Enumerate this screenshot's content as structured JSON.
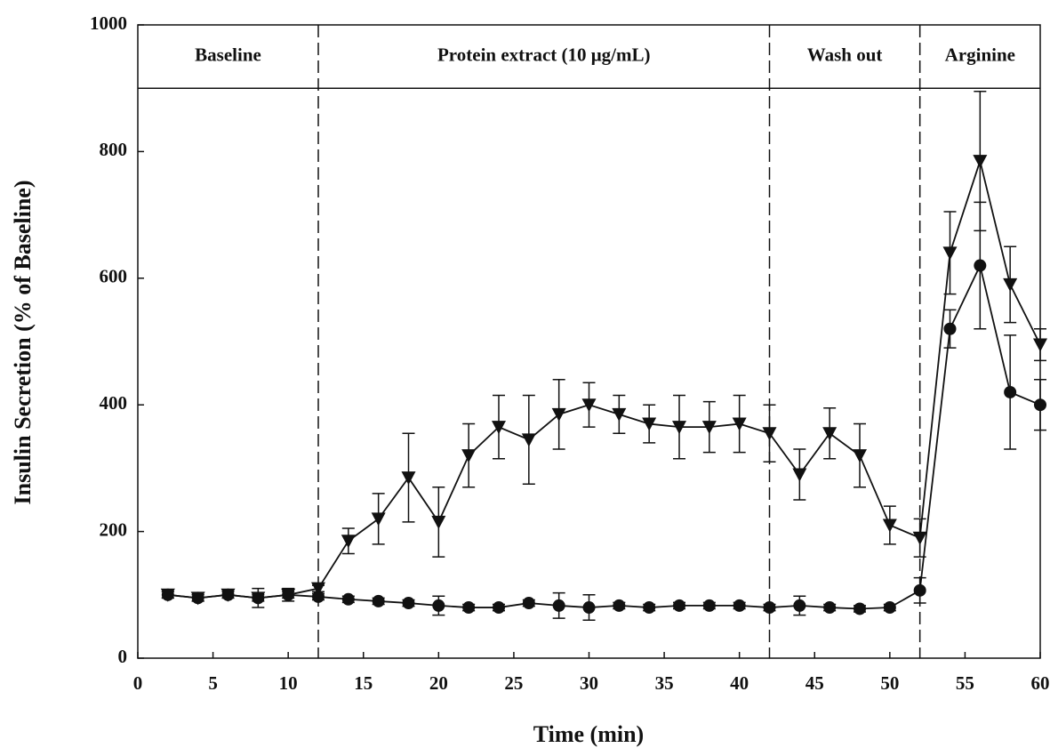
{
  "chart_data": {
    "type": "line",
    "x_label": "Time (min)",
    "y_label": "Insulin Secretion (% of Baseline)",
    "x": [
      2,
      4,
      6,
      8,
      10,
      12,
      14,
      16,
      18,
      20,
      22,
      24,
      26,
      28,
      30,
      32,
      34,
      36,
      38,
      40,
      42,
      44,
      46,
      48,
      50,
      52,
      54,
      56,
      58,
      60
    ],
    "series": [
      {
        "marker": "triangle-down",
        "color": "#111111",
        "values": [
          100,
          95,
          100,
          95,
          100,
          110,
          185,
          220,
          285,
          215,
          320,
          365,
          345,
          385,
          400,
          385,
          370,
          365,
          365,
          370,
          355,
          290,
          355,
          320,
          210,
          190,
          640,
          785,
          590,
          495
        ],
        "errors": [
          5,
          5,
          5,
          5,
          5,
          5,
          20,
          40,
          70,
          55,
          50,
          50,
          70,
          55,
          35,
          30,
          30,
          50,
          40,
          45,
          45,
          40,
          40,
          50,
          30,
          30,
          65,
          110,
          60,
          25
        ]
      },
      {
        "marker": "circle",
        "color": "#111111",
        "values": [
          100,
          95,
          100,
          95,
          100,
          97,
          93,
          90,
          87,
          83,
          80,
          80,
          87,
          83,
          80,
          83,
          80,
          83,
          83,
          83,
          80,
          83,
          80,
          78,
          80,
          107,
          520,
          620,
          420,
          400
        ],
        "errors": [
          5,
          5,
          5,
          15,
          10,
          5,
          5,
          5,
          5,
          15,
          5,
          5,
          5,
          20,
          20,
          5,
          5,
          5,
          5,
          5,
          5,
          15,
          5,
          5,
          5,
          20,
          30,
          100,
          90,
          40
        ]
      }
    ],
    "phases": [
      {
        "label": "Baseline",
        "start": 0,
        "end": 12
      },
      {
        "label": "Protein extract (10 μg/mL)",
        "start": 12,
        "end": 42
      },
      {
        "label": "Wash out",
        "start": 42,
        "end": 52
      },
      {
        "label": "Arginine",
        "start": 52,
        "end": 60
      }
    ],
    "phase_band_bottom": 900,
    "xlim": [
      0,
      60
    ],
    "xticks": [
      0,
      5,
      10,
      15,
      20,
      25,
      30,
      35,
      40,
      45,
      50,
      55,
      60
    ],
    "ylim": [
      0,
      1000
    ],
    "yticks": [
      0,
      200,
      400,
      600,
      800,
      1000
    ]
  }
}
